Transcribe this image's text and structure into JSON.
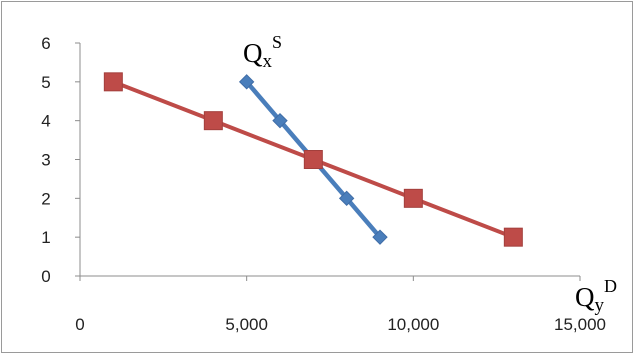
{
  "chart_data": {
    "type": "line",
    "title": "",
    "xlabel": "",
    "ylabel": "",
    "xlim": [
      0,
      15000
    ],
    "ylim": [
      0,
      6
    ],
    "x_ticks": [
      0,
      5000,
      10000,
      15000
    ],
    "x_tick_labels": [
      "0",
      "5,000",
      "10,000",
      "15,000"
    ],
    "y_ticks": [
      0,
      1,
      2,
      3,
      4,
      5,
      6
    ],
    "y_tick_labels": [
      "0",
      "1",
      "2",
      "3",
      "4",
      "5",
      "6"
    ],
    "grid": false,
    "legend": "none",
    "series": [
      {
        "color": "#4a7ebb",
        "marker": "diamond",
        "points": [
          {
            "x": 5000,
            "y": 5
          },
          {
            "x": 6000,
            "y": 4
          },
          {
            "x": 7000,
            "y": 3
          },
          {
            "x": 8000,
            "y": 2
          },
          {
            "x": 9000,
            "y": 1
          }
        ]
      },
      {
        "color": "#be4b48",
        "marker": "square",
        "points": [
          {
            "x": 1000,
            "y": 5
          },
          {
            "x": 4000,
            "y": 4
          },
          {
            "x": 7000,
            "y": 3
          },
          {
            "x": 10000,
            "y": 2
          },
          {
            "x": 13000,
            "y": 1
          }
        ]
      }
    ],
    "annotations": [
      {
        "base": "Q",
        "sub": "x",
        "sup": "S"
      },
      {
        "base": "Q",
        "sub": "y",
        "sup": "D"
      }
    ]
  }
}
